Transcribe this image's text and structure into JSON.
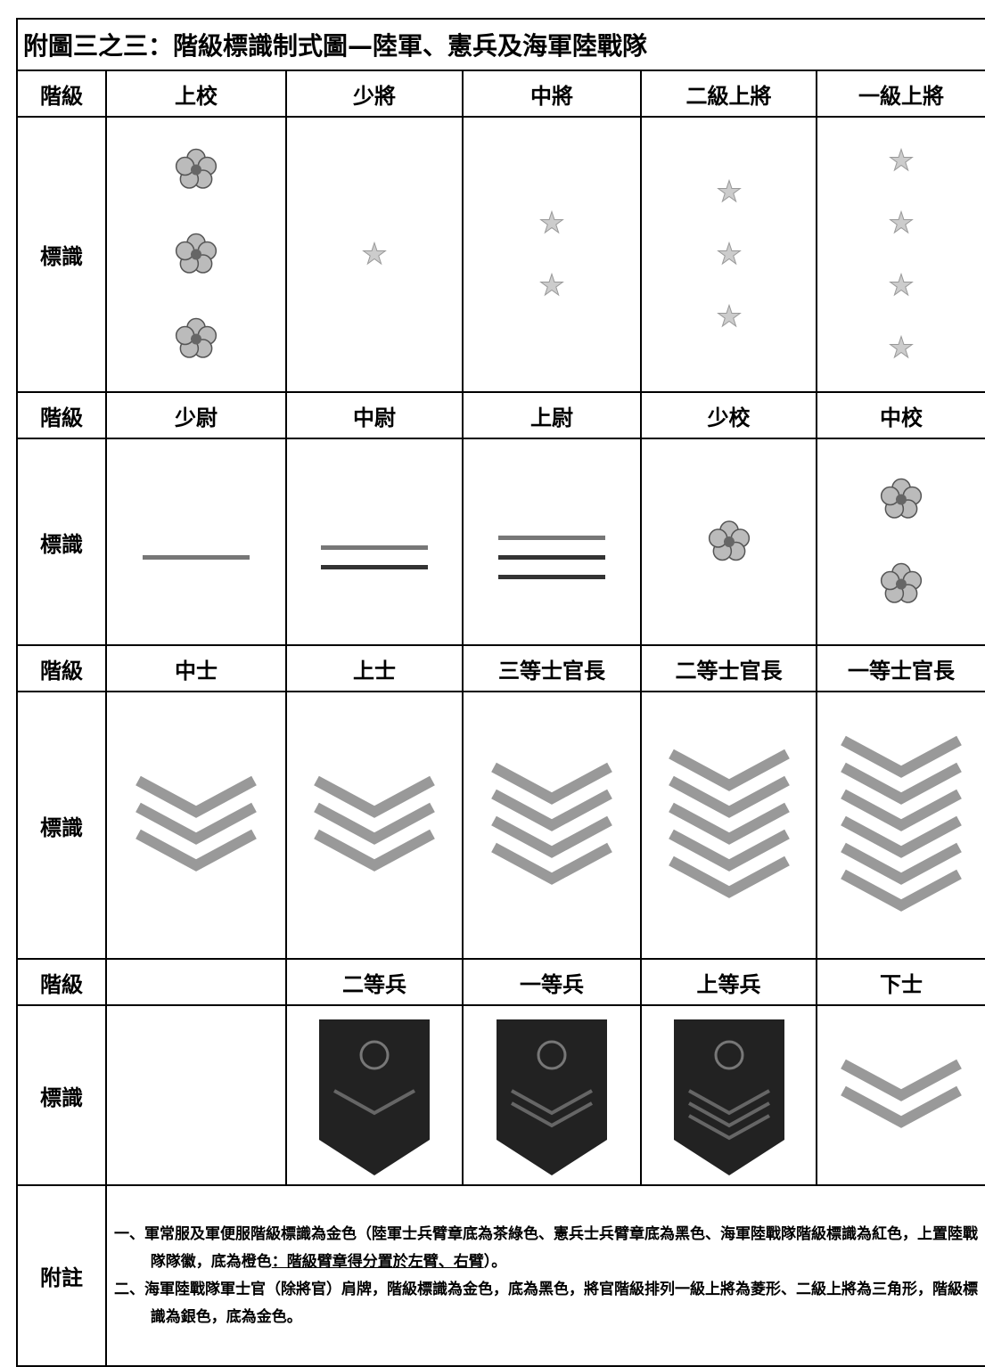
{
  "header": {
    "title": "附圖三之三：階級標識制式圖—陸軍、憲兵及海軍陸戰隊"
  },
  "groups": [
    {
      "rank_label": "階級",
      "insignia_label": "標識",
      "ranks": [
        "上校",
        "少將",
        "中將",
        "二級上將",
        "一級上將"
      ]
    },
    {
      "rank_label": "階級",
      "insignia_label": "標識",
      "ranks": [
        "少尉",
        "中尉",
        "上尉",
        "少校",
        "中校"
      ]
    },
    {
      "rank_label": "階級",
      "insignia_label": "標識",
      "ranks": [
        "中士",
        "上士",
        "三等士官長",
        "二等士官長",
        "一等士官長"
      ]
    },
    {
      "rank_label": "階級",
      "insignia_label": "標識",
      "ranks": [
        null,
        "二等兵",
        "一等兵",
        "上等兵",
        "下士"
      ]
    }
  ],
  "notes": {
    "label": "附註",
    "items": [
      {
        "text": "一、軍常服及軍便服階級標識為金色（陸軍士兵臂章底為茶綠色、憲兵士兵臂章底為黑色、海軍陸戰隊階級標識為紅色，上置陸戰隊隊徽，底為橙色",
        "underlined": "：階級臂章得分置於左臂、右臂",
        "tail": "）。"
      },
      {
        "text": "二、海軍陸戰隊軍士官（除將官）肩牌，階級標識為金色，底為黑色，將官階級排列一級上將為菱形、二級上將為三角形，階級標識為銀色，底為金色。"
      }
    ]
  }
}
